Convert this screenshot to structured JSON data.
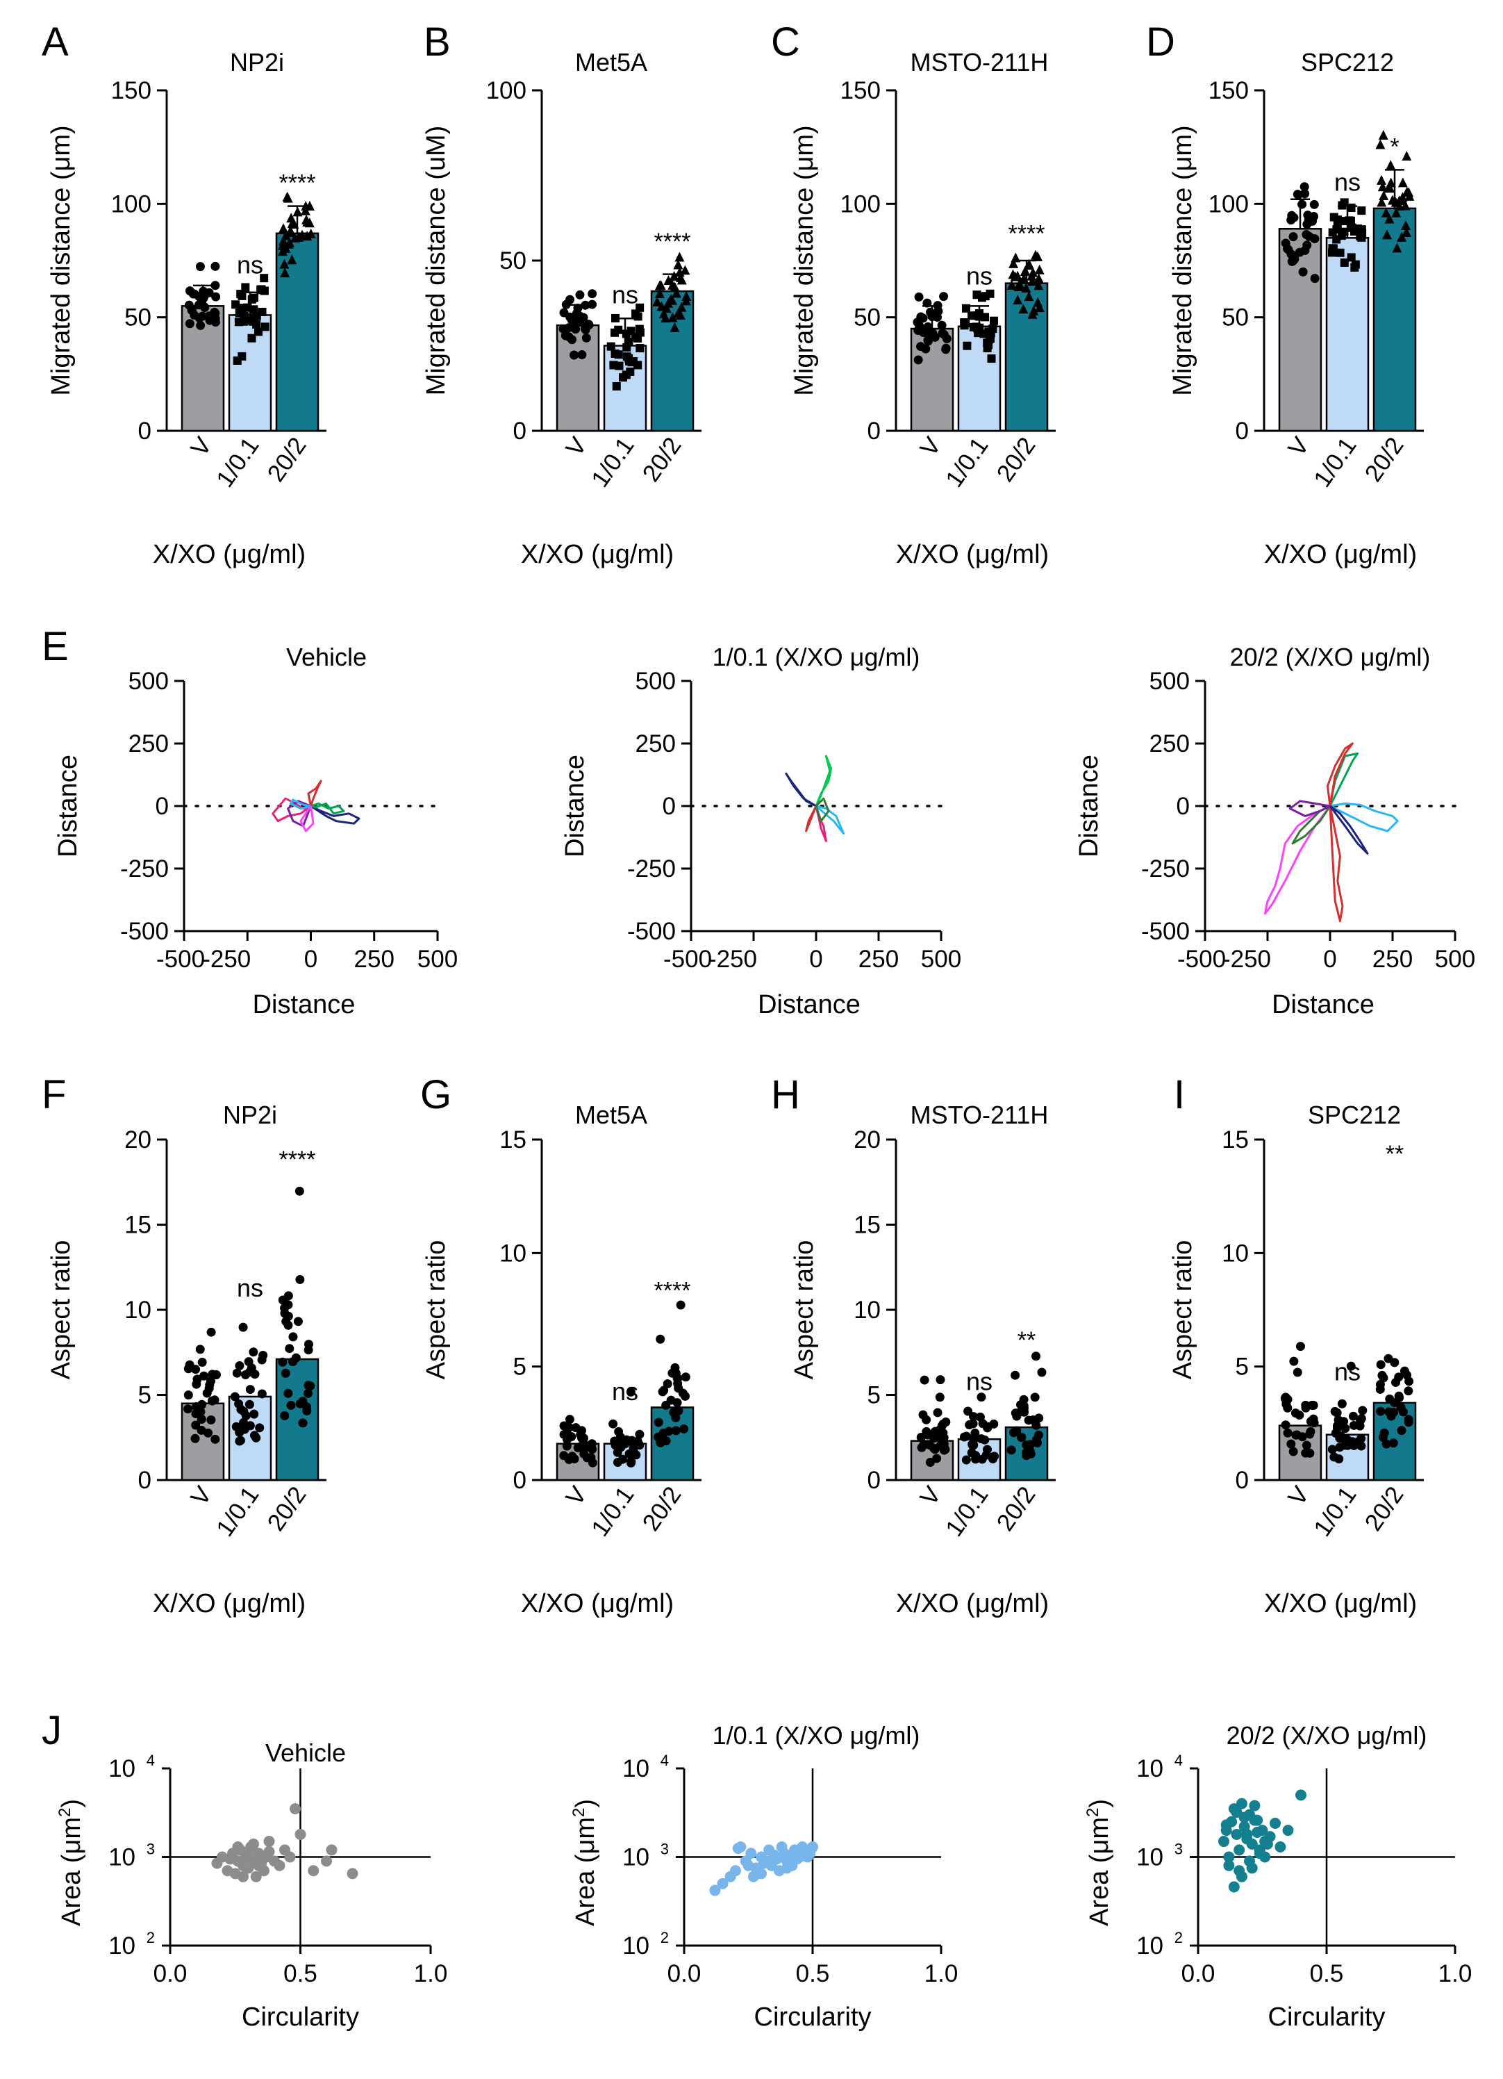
{
  "colors": {
    "vehicle": "#9e9ea2",
    "low": "#bfdaf7",
    "high": "#127a8c",
    "scatter_vehicle": "#8c8c8c",
    "scatter_low": "#78b5ea",
    "scatter_high": "#137f8f",
    "axis": "#000000"
  },
  "chart_data": [
    {
      "panel": "A",
      "type": "bar",
      "title": "NP2i",
      "ylabel": "Migrated distance (μm)",
      "xlabel": "X/XO (μg/ml)",
      "categories": [
        "V",
        "1/0.1",
        "20/2"
      ],
      "values": [
        55,
        51,
        87
      ],
      "sd": [
        9,
        10,
        12
      ],
      "ylim": [
        0,
        150
      ],
      "yticks": [
        0,
        50,
        100,
        150
      ],
      "significance": [
        "",
        "ns",
        "****"
      ],
      "point_markers": [
        "circle",
        "square",
        "triangle"
      ]
    },
    {
      "panel": "B",
      "type": "bar",
      "title": "Met5A",
      "ylabel": "Migrated distance (uM)",
      "xlabel": "X/XO (μg/ml)",
      "categories": [
        "V",
        "1/0.1",
        "20/2"
      ],
      "values": [
        31,
        25,
        41
      ],
      "sd": [
        6,
        8,
        5
      ],
      "ylim": [
        0,
        100
      ],
      "yticks": [
        0,
        50,
        100
      ],
      "significance": [
        "",
        "ns",
        "****"
      ],
      "point_markers": [
        "circle",
        "square",
        "triangle"
      ]
    },
    {
      "panel": "C",
      "type": "bar",
      "title": "MSTO-211H",
      "ylabel": "Migrated distance (μm)",
      "xlabel": "X/XO (μg/ml)",
      "categories": [
        "V",
        "1/0.1",
        "20/2"
      ],
      "values": [
        45,
        46,
        65
      ],
      "sd": [
        10,
        9,
        10
      ],
      "ylim": [
        0,
        150
      ],
      "yticks": [
        0,
        50,
        100,
        150
      ],
      "significance": [
        "",
        "ns",
        "****"
      ],
      "point_markers": [
        "circle",
        "square",
        "triangle"
      ]
    },
    {
      "panel": "D",
      "type": "bar",
      "title": "SPC212",
      "ylabel": "Migrated distance (μm)",
      "xlabel": "X/XO (μg/ml)",
      "categories": [
        "V",
        "1/0.1",
        "20/2"
      ],
      "values": [
        89,
        85,
        98
      ],
      "sd": [
        13,
        14,
        17
      ],
      "ylim": [
        0,
        150
      ],
      "yticks": [
        0,
        50,
        100,
        150
      ],
      "significance": [
        "",
        "ns",
        "*"
      ],
      "point_markers": [
        "circle",
        "square",
        "triangle"
      ]
    },
    {
      "panel": "E",
      "type": "line",
      "title": "Vehicle",
      "xlabel": "Distance",
      "ylabel": "Distance",
      "xlim": [
        -500,
        500
      ],
      "ylim": [
        -500,
        500
      ],
      "xticks": [
        -500,
        -250,
        0,
        250,
        500
      ],
      "yticks": [
        -500,
        -250,
        0,
        250,
        500
      ],
      "series": [
        {
          "name": "track1",
          "color": "#e5227a",
          "x": [
            0,
            -30,
            -60,
            -100,
            -150,
            -130,
            -90,
            -40,
            0
          ],
          "y": [
            0,
            -10,
            10,
            30,
            -30,
            -60,
            -40,
            -30,
            0
          ]
        },
        {
          "name": "track2",
          "color": "#1a237e",
          "x": [
            0,
            40,
            90,
            150,
            190,
            170,
            100,
            60,
            0
          ],
          "y": [
            0,
            -20,
            -40,
            -30,
            -50,
            -70,
            -60,
            -40,
            0
          ]
        },
        {
          "name": "track3",
          "color": "#00a651",
          "x": [
            0,
            30,
            70,
            110,
            130,
            90,
            60,
            20,
            0
          ],
          "y": [
            0,
            10,
            -10,
            0,
            -20,
            -30,
            10,
            -5,
            0
          ]
        },
        {
          "name": "track4",
          "color": "#d32f2f",
          "x": [
            0,
            -10,
            20,
            40,
            30,
            10,
            0
          ],
          "y": [
            0,
            50,
            70,
            100,
            80,
            30,
            0
          ]
        },
        {
          "name": "track5",
          "color": "#7b1fa2",
          "x": [
            0,
            -50,
            -90,
            -70,
            -30,
            0
          ],
          "y": [
            0,
            20,
            -10,
            -60,
            -80,
            0
          ]
        },
        {
          "name": "track6",
          "color": "#29b6f6",
          "x": [
            0,
            -30,
            -70,
            -80,
            -40,
            0
          ],
          "y": [
            0,
            5,
            25,
            10,
            -10,
            0
          ]
        },
        {
          "name": "track7",
          "color": "#ff40ff",
          "x": [
            0,
            -20,
            -40,
            -20,
            10,
            0
          ],
          "y": [
            0,
            -30,
            -60,
            -100,
            -70,
            0
          ]
        }
      ]
    },
    {
      "panel": "E2",
      "type": "line",
      "title": "1/0.1 (X/XO μg/ml)",
      "xlabel": "Distance",
      "ylabel": "Distance",
      "xlim": [
        -500,
        500
      ],
      "ylim": [
        -500,
        500
      ],
      "xticks": [
        -500,
        -250,
        0,
        250,
        500
      ],
      "yticks": [
        -500,
        -250,
        0,
        250,
        500
      ],
      "series": [
        {
          "name": "track1",
          "color": "#00c853",
          "x": [
            0,
            20,
            50,
            60,
            40,
            55,
            30,
            10,
            0
          ],
          "y": [
            0,
            50,
            100,
            150,
            200,
            140,
            70,
            20,
            0
          ]
        },
        {
          "name": "track2",
          "color": "#1a237e",
          "x": [
            0,
            -40,
            -70,
            -100,
            -120,
            -90,
            -50,
            0
          ],
          "y": [
            0,
            20,
            60,
            100,
            130,
            80,
            30,
            0
          ]
        },
        {
          "name": "track3",
          "color": "#e5227a",
          "x": [
            0,
            10,
            30,
            40,
            20,
            0
          ],
          "y": [
            0,
            -40,
            -80,
            -140,
            -90,
            0
          ]
        },
        {
          "name": "track4",
          "color": "#29b6f6",
          "x": [
            0,
            40,
            80,
            110,
            70,
            0
          ],
          "y": [
            0,
            -10,
            -40,
            -110,
            -60,
            0
          ]
        },
        {
          "name": "track5",
          "color": "#d32f2f",
          "x": [
            0,
            -20,
            -40,
            -30,
            0
          ],
          "y": [
            0,
            -50,
            -100,
            -60,
            0
          ]
        },
        {
          "name": "track6",
          "color": "#2e7d32",
          "x": [
            0,
            30,
            50,
            20,
            0
          ],
          "y": [
            0,
            30,
            -20,
            -60,
            0
          ]
        }
      ]
    },
    {
      "panel": "E3",
      "type": "line",
      "title": "20/2 (X/XO μg/ml)",
      "xlabel": "Distance",
      "ylabel": "Distance",
      "xlim": [
        -500,
        500
      ],
      "ylim": [
        -500,
        500
      ],
      "xticks": [
        -500,
        -250,
        0,
        250,
        500
      ],
      "yticks": [
        -500,
        -250,
        0,
        250,
        500
      ],
      "series": [
        {
          "name": "track1",
          "color": "#ff40ff",
          "x": [
            0,
            -60,
            -130,
            -180,
            -200,
            -220,
            -250,
            -260,
            -230,
            -180,
            -120,
            -60,
            0
          ],
          "y": [
            0,
            -30,
            -80,
            -150,
            -250,
            -320,
            -380,
            -430,
            -390,
            -300,
            -180,
            -80,
            0
          ]
        },
        {
          "name": "track2",
          "color": "#d32f2f",
          "x": [
            0,
            20,
            40,
            30,
            50,
            40,
            20,
            10,
            0
          ],
          "y": [
            0,
            -100,
            -200,
            -300,
            -400,
            -460,
            -380,
            -200,
            0
          ]
        },
        {
          "name": "track3",
          "color": "#29b6f6",
          "x": [
            0,
            60,
            120,
            180,
            250,
            270,
            230,
            160,
            80,
            0
          ],
          "y": [
            0,
            10,
            5,
            -20,
            -40,
            -60,
            -100,
            -80,
            -40,
            0
          ]
        },
        {
          "name": "track4",
          "color": "#00a651",
          "x": [
            0,
            30,
            60,
            90,
            110,
            60,
            20,
            0
          ],
          "y": [
            0,
            60,
            120,
            180,
            210,
            200,
            100,
            0
          ]
        },
        {
          "name": "track5",
          "color": "#d32f2f",
          "x": [
            0,
            -10,
            20,
            60,
            90,
            60,
            20,
            0
          ],
          "y": [
            0,
            80,
            160,
            230,
            250,
            210,
            120,
            0
          ]
        },
        {
          "name": "track6",
          "color": "#2e7d32",
          "x": [
            0,
            -40,
            -80,
            -120,
            -150,
            -100,
            -40,
            0
          ],
          "y": [
            0,
            -20,
            -60,
            -100,
            -150,
            -120,
            -60,
            0
          ]
        },
        {
          "name": "track7",
          "color": "#1a237e",
          "x": [
            0,
            40,
            80,
            120,
            150,
            110,
            60,
            0
          ],
          "y": [
            0,
            -30,
            -80,
            -140,
            -190,
            -150,
            -80,
            0
          ]
        },
        {
          "name": "track8",
          "color": "#7b1fa2",
          "x": [
            0,
            -60,
            -120,
            -160,
            -100,
            -40,
            0
          ],
          "y": [
            0,
            10,
            20,
            -10,
            -40,
            -20,
            0
          ]
        }
      ]
    },
    {
      "panel": "F",
      "type": "bar",
      "title": "NP2i",
      "ylabel": "Aspect ratio",
      "xlabel": "X/XO (μg/ml)",
      "categories": [
        "V",
        "1/0.1",
        "20/2"
      ],
      "values": [
        4.5,
        4.9,
        7.1
      ],
      "ylim": [
        0,
        20
      ],
      "yticks": [
        0,
        5,
        10,
        15,
        20
      ],
      "significance": [
        "",
        "ns",
        "****"
      ]
    },
    {
      "panel": "G",
      "type": "bar",
      "title": "Met5A",
      "ylabel": "Aspect ratio",
      "xlabel": "X/XO (μg/ml)",
      "categories": [
        "V",
        "1/0.1",
        "20/2"
      ],
      "values": [
        1.6,
        1.6,
        3.2
      ],
      "ylim": [
        0,
        15
      ],
      "yticks": [
        0,
        5,
        10,
        15
      ],
      "significance": [
        "",
        "ns",
        "****"
      ]
    },
    {
      "panel": "H",
      "type": "bar",
      "title": "MSTO-211H",
      "ylabel": "Aspect ratio",
      "xlabel": "X/XO (μg/ml)",
      "categories": [
        "V",
        "1/0.1",
        "20/2"
      ],
      "values": [
        2.3,
        2.4,
        3.1
      ],
      "ylim": [
        0,
        20
      ],
      "yticks": [
        0,
        5,
        10,
        15,
        20
      ],
      "significance": [
        "",
        "ns",
        "**"
      ]
    },
    {
      "panel": "I",
      "type": "bar",
      "title": "SPC212",
      "ylabel": "Aspect ratio",
      "xlabel": "X/XO (μg/ml)",
      "categories": [
        "V",
        "1/0.1",
        "20/2"
      ],
      "values": [
        2.4,
        2.0,
        3.4
      ],
      "ylim": [
        0,
        15
      ],
      "yticks": [
        0,
        5,
        10,
        15
      ],
      "significance": [
        "",
        "ns",
        "**"
      ]
    },
    {
      "panel": "J",
      "type": "scatter",
      "title": "Vehicle",
      "xlabel": "Circularity",
      "ylabel": "Area (μm2)",
      "xlim": [
        0,
        1
      ],
      "ylim_log10": [
        2,
        4
      ],
      "xticks": [
        "0.0",
        "0.5",
        "1.0"
      ],
      "yticks": [
        {
          "base": "10",
          "exp": "2"
        },
        {
          "base": "10",
          "exp": "3"
        },
        {
          "base": "10",
          "exp": "4"
        }
      ],
      "reference_lines": {
        "x": 0.5,
        "y": 1000
      },
      "x": [
        0.18,
        0.2,
        0.22,
        0.24,
        0.25,
        0.26,
        0.27,
        0.28,
        0.29,
        0.3,
        0.31,
        0.32,
        0.33,
        0.34,
        0.35,
        0.36,
        0.37,
        0.38,
        0.4,
        0.42,
        0.44,
        0.46,
        0.48,
        0.5,
        0.55,
        0.6,
        0.62,
        0.7,
        0.26,
        0.3,
        0.34,
        0.38,
        0.23,
        0.28,
        0.32
      ],
      "y": [
        850,
        1000,
        700,
        1100,
        650,
        900,
        1200,
        800,
        1000,
        750,
        1300,
        900,
        600,
        1100,
        850,
        700,
        1000,
        1500,
        900,
        800,
        1200,
        1000,
        3500,
        1800,
        700,
        900,
        1200,
        650,
        1300,
        1050,
        800,
        1150,
        950,
        600,
        1400
      ]
    },
    {
      "panel": "J2",
      "type": "scatter",
      "title": "1/0.1 (X/XO μg/ml)",
      "xlabel": "Circularity",
      "ylabel": "Area (μm2)",
      "xlim": [
        0,
        1
      ],
      "ylim_log10": [
        2,
        4
      ],
      "xticks": [
        "0.0",
        "0.5",
        "1.0"
      ],
      "yticks": [
        {
          "base": "10",
          "exp": "2"
        },
        {
          "base": "10",
          "exp": "3"
        },
        {
          "base": "10",
          "exp": "4"
        }
      ],
      "reference_lines": {
        "x": 0.5,
        "y": 1000
      },
      "x": [
        0.12,
        0.15,
        0.18,
        0.2,
        0.22,
        0.24,
        0.25,
        0.26,
        0.28,
        0.3,
        0.3,
        0.32,
        0.33,
        0.34,
        0.35,
        0.36,
        0.37,
        0.38,
        0.39,
        0.4,
        0.41,
        0.42,
        0.43,
        0.44,
        0.45,
        0.46,
        0.47,
        0.48,
        0.49,
        0.5,
        0.27,
        0.31,
        0.35,
        0.4,
        0.44,
        0.21
      ],
      "y": [
        420,
        500,
        600,
        700,
        1300,
        900,
        800,
        1100,
        750,
        1000,
        650,
        900,
        1200,
        800,
        1000,
        950,
        700,
        1300,
        1100,
        900,
        1000,
        800,
        1200,
        1100,
        1000,
        1300,
        1200,
        1000,
        1100,
        1300,
        600,
        850,
        1050,
        750,
        950,
        1250
      ]
    },
    {
      "panel": "J3",
      "type": "scatter",
      "title": "20/2 (X/XO μg/ml)",
      "xlabel": "Circularity",
      "ylabel": "Area (μm2)",
      "xlim": [
        0,
        1
      ],
      "ylim_log10": [
        2,
        4
      ],
      "xticks": [
        "0.0",
        "0.5",
        "1.0"
      ],
      "yticks": [
        {
          "base": "10",
          "exp": "2"
        },
        {
          "base": "10",
          "exp": "3"
        },
        {
          "base": "10",
          "exp": "4"
        }
      ],
      "reference_lines": {
        "x": 0.5,
        "y": 1000
      },
      "x": [
        0.1,
        0.11,
        0.12,
        0.13,
        0.14,
        0.15,
        0.16,
        0.17,
        0.18,
        0.19,
        0.2,
        0.21,
        0.22,
        0.23,
        0.24,
        0.25,
        0.26,
        0.28,
        0.3,
        0.32,
        0.35,
        0.4,
        0.12,
        0.16,
        0.2,
        0.24,
        0.14,
        0.18,
        0.22,
        0.26,
        0.11,
        0.15,
        0.19,
        0.23,
        0.27,
        0.17,
        0.21
      ],
      "y": [
        1500,
        2000,
        1000,
        2500,
        3500,
        1800,
        1200,
        4000,
        2200,
        1600,
        3000,
        1400,
        2600,
        1900,
        1100,
        2000,
        1500,
        1700,
        2400,
        1300,
        2000,
        5000,
        800,
        700,
        900,
        1200,
        460,
        2800,
        3800,
        1000,
        2300,
        3200,
        1800,
        2600,
        1400,
        600,
        750
      ]
    }
  ]
}
